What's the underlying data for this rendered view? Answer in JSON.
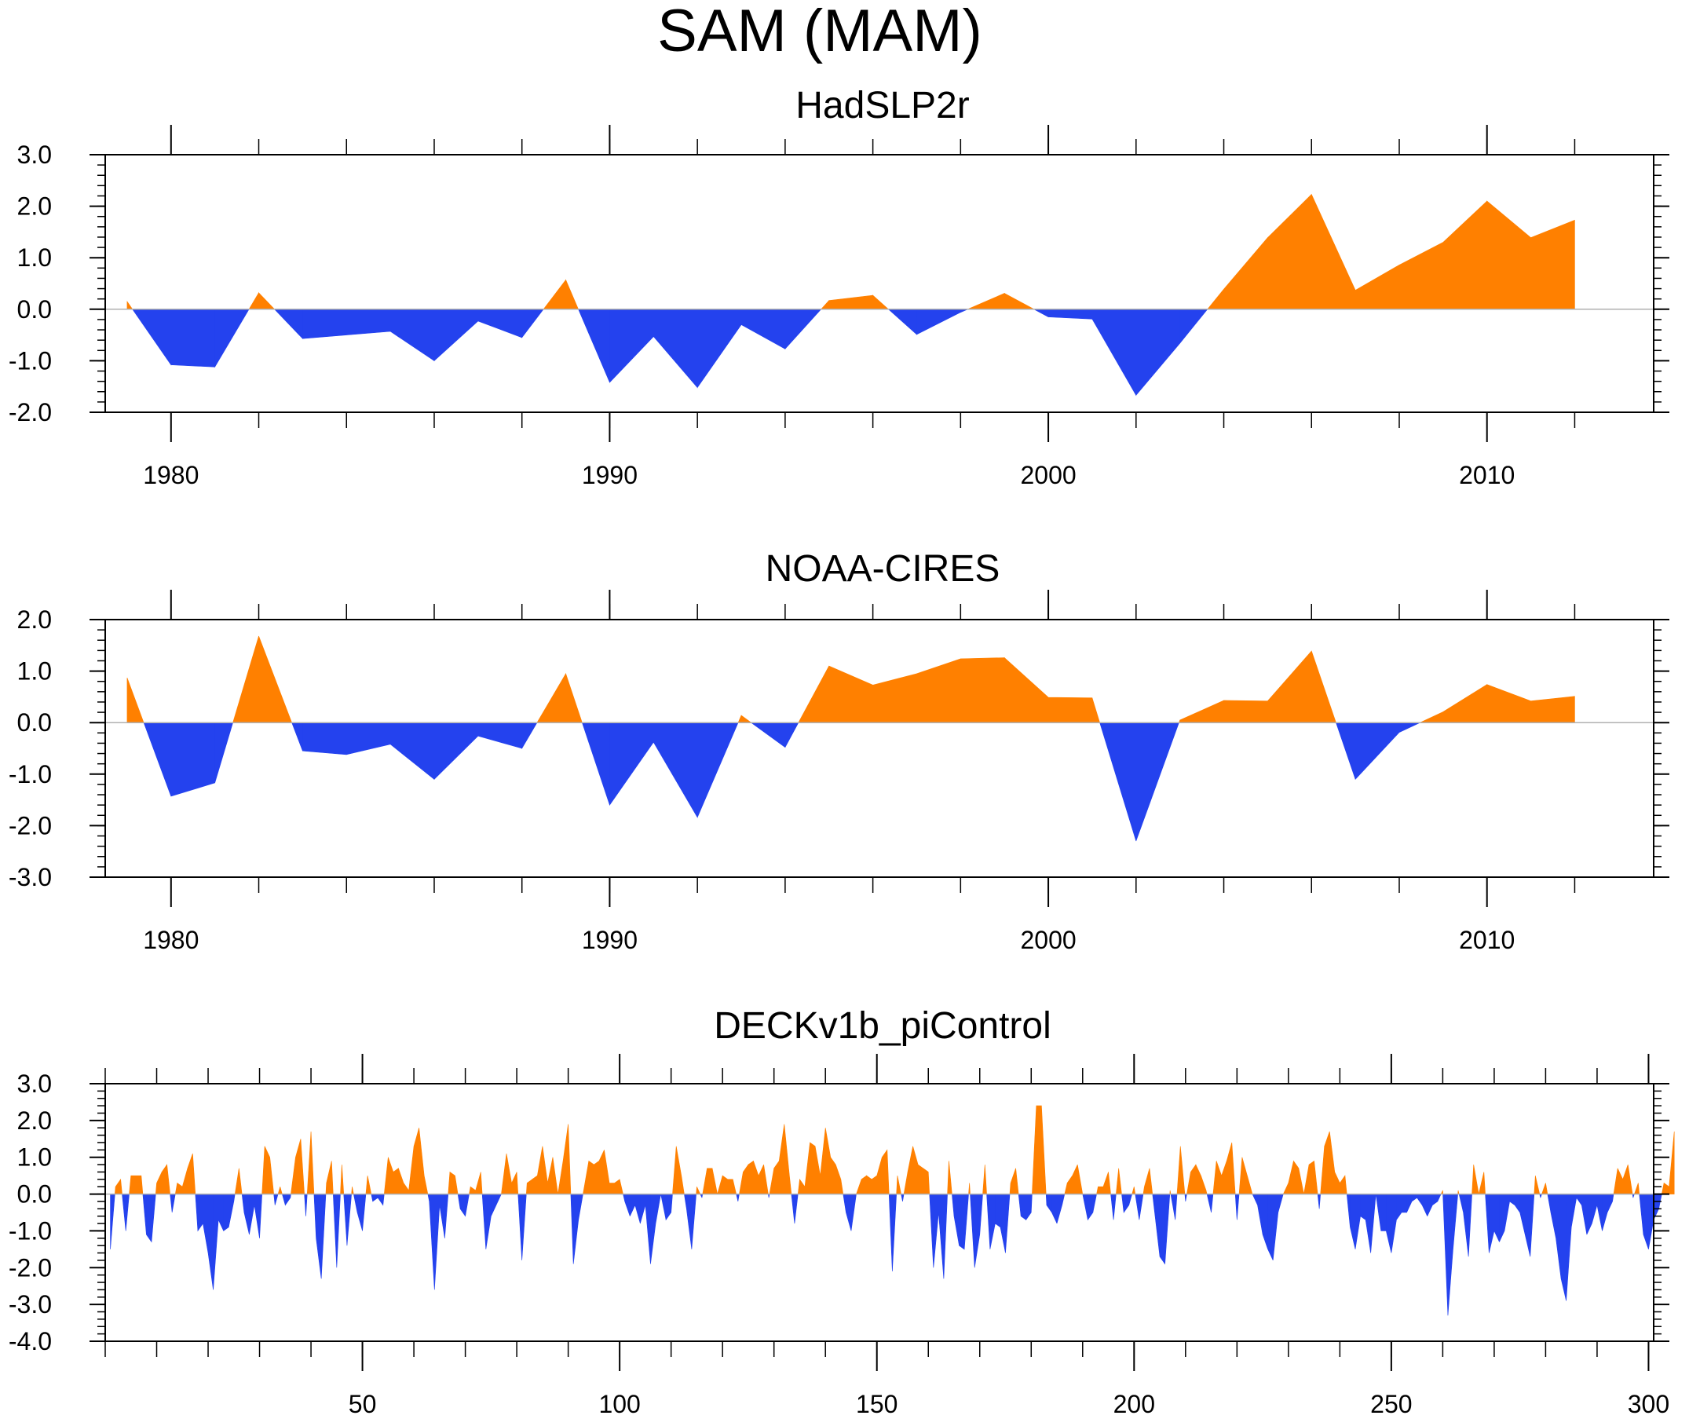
{
  "title": "SAM (MAM)",
  "colors": {
    "positive": "#ff8000",
    "negative": "#2442ee",
    "axis": "#000000",
    "zero_line": "#b0b0b0"
  },
  "chart_data": [
    {
      "type": "area",
      "title": "HadSLP2r",
      "xlabel": "",
      "ylabel": "",
      "xlim": [
        1978.5,
        2013.8
      ],
      "ylim": [
        -2.0,
        3.0
      ],
      "yticks": [
        -2.0,
        -1.0,
        0.0,
        1.0,
        2.0,
        3.0
      ],
      "ytick_labels": [
        "-2.0",
        "-1.0",
        "0.0",
        "1.0",
        "2.0",
        "3.0"
      ],
      "y_minor_step": 0.2,
      "xticks": [
        1980,
        1990,
        2000,
        2010
      ],
      "xtick_labels": [
        "1980",
        "1990",
        "2000",
        "2010"
      ],
      "x_minor_step": 2,
      "x": [
        1979,
        1980,
        1981,
        1982,
        1983,
        1984,
        1985,
        1986,
        1987,
        1988,
        1989,
        1990,
        1991,
        1992,
        1993,
        1994,
        1995,
        1996,
        1997,
        1998,
        1999,
        2000,
        2001,
        2002,
        2003,
        2004,
        2005,
        2006,
        2007,
        2008,
        2009,
        2010,
        2011,
        2012
      ],
      "values": [
        0.15,
        -1.08,
        -1.12,
        0.32,
        -0.57,
        -0.5,
        -0.43,
        -1.0,
        -0.23,
        -0.55,
        0.57,
        -1.42,
        -0.53,
        -1.52,
        -0.3,
        -0.77,
        0.17,
        0.27,
        -0.49,
        -0.06,
        0.31,
        -0.15,
        -0.19,
        -1.67,
        -0.66,
        0.39,
        1.39,
        2.23,
        0.37,
        0.86,
        1.3,
        2.1,
        1.39,
        1.73
      ]
    },
    {
      "type": "area",
      "title": "NOAA-CIRES",
      "xlabel": "",
      "ylabel": "",
      "xlim": [
        1978.5,
        2013.8
      ],
      "ylim": [
        -3.0,
        2.0
      ],
      "yticks": [
        -3.0,
        -2.0,
        -1.0,
        0.0,
        1.0,
        2.0
      ],
      "ytick_labels": [
        "-3.0",
        "-2.0",
        "-1.0",
        "0.0",
        "1.0",
        "2.0"
      ],
      "y_minor_step": 0.2,
      "xticks": [
        1980,
        1990,
        2000,
        2010
      ],
      "xtick_labels": [
        "1980",
        "1990",
        "2000",
        "2010"
      ],
      "x_minor_step": 2,
      "x": [
        1979,
        1980,
        1981,
        1982,
        1983,
        1984,
        1985,
        1986,
        1987,
        1988,
        1989,
        1990,
        1991,
        1992,
        1993,
        1994,
        1995,
        1996,
        1997,
        1998,
        1999,
        2000,
        2001,
        2002,
        2003,
        2004,
        2005,
        2006,
        2007,
        2008,
        2009,
        2010,
        2011,
        2012
      ],
      "values": [
        0.87,
        -1.43,
        -1.17,
        1.68,
        -0.55,
        -0.62,
        -0.42,
        -1.1,
        -0.26,
        -0.5,
        0.95,
        -1.6,
        -0.38,
        -1.84,
        0.14,
        -0.48,
        1.1,
        0.73,
        0.95,
        1.24,
        1.26,
        0.49,
        0.48,
        -2.3,
        0.05,
        0.43,
        0.42,
        1.39,
        -1.1,
        -0.19,
        0.21,
        0.74,
        0.42,
        0.51
      ]
    },
    {
      "type": "area",
      "title": "DECKv1b_piControl",
      "xlabel": "",
      "ylabel": "",
      "xlim": [
        0,
        301
      ],
      "ylim": [
        -4.0,
        3.0
      ],
      "yticks": [
        -4.0,
        -3.0,
        -2.0,
        -1.0,
        0.0,
        1.0,
        2.0,
        3.0
      ],
      "ytick_labels": [
        "-4.0",
        "-3.0",
        "-2.0",
        "-1.0",
        "0.0",
        "1.0",
        "2.0",
        "3.0"
      ],
      "y_minor_step": 0.2,
      "xticks": [
        50,
        100,
        150,
        200,
        250,
        300
      ],
      "xtick_labels": [
        "50",
        "100",
        "150",
        "200",
        "250",
        "300"
      ],
      "x_minor_step": 10,
      "x_start": 1,
      "values": [
        -1.5,
        0.2,
        0.4,
        -1.0,
        0.5,
        0.5,
        0.5,
        -1.1,
        -1.3,
        0.3,
        0.6,
        0.8,
        -0.5,
        0.3,
        0.2,
        0.7,
        1.1,
        -1.0,
        -0.8,
        -1.6,
        -2.6,
        -0.7,
        -1.0,
        -0.9,
        -0.2,
        0.7,
        -0.5,
        -1.1,
        -0.3,
        -1.2,
        1.3,
        1.0,
        -0.3,
        0.2,
        -0.3,
        -0.1,
        1.0,
        1.5,
        -0.6,
        1.7,
        -1.2,
        -2.3,
        0.3,
        0.9,
        -2.0,
        0.8,
        -1.4,
        0.2,
        -0.5,
        -1.0,
        0.5,
        -0.2,
        -0.1,
        -0.3,
        1.0,
        0.6,
        0.7,
        0.3,
        0.1,
        1.3,
        1.8,
        0.5,
        -0.2,
        -2.6,
        -0.3,
        -1.2,
        0.6,
        0.5,
        -0.4,
        -0.6,
        0.2,
        0.1,
        0.6,
        -1.5,
        -0.6,
        -0.3,
        0.0,
        1.1,
        0.3,
        0.6,
        -1.8,
        0.3,
        0.4,
        0.5,
        1.3,
        0.3,
        1.0,
        0.0,
        0.9,
        1.9,
        -1.9,
        -0.7,
        0.1,
        0.9,
        0.8,
        0.9,
        1.2,
        0.3,
        0.3,
        0.4,
        -0.2,
        -0.6,
        -0.3,
        -0.8,
        -0.3,
        -1.9,
        -0.8,
        0.0,
        -0.7,
        -0.5,
        1.3,
        0.5,
        -0.4,
        -1.5,
        0.2,
        -0.1,
        0.7,
        0.7,
        0.0,
        0.5,
        0.4,
        0.4,
        -0.2,
        0.6,
        0.8,
        0.9,
        0.5,
        0.8,
        -0.1,
        0.7,
        0.9,
        1.9,
        0.5,
        -0.8,
        0.4,
        0.2,
        1.4,
        1.3,
        0.5,
        1.8,
        1.0,
        0.8,
        0.4,
        -0.5,
        -1.0,
        0.0,
        0.4,
        0.5,
        0.4,
        0.5,
        1.0,
        1.2,
        -2.1,
        0.5,
        -0.2,
        0.6,
        1.3,
        0.8,
        0.7,
        0.6,
        -2.0,
        -0.5,
        -2.3,
        0.9,
        -0.6,
        -1.4,
        -1.5,
        0.3,
        -2.0,
        -1.1,
        0.8,
        -1.5,
        -0.8,
        -0.9,
        -1.6,
        0.3,
        0.7,
        -0.6,
        -0.7,
        -0.5,
        2.4,
        2.4,
        -0.3,
        -0.5,
        -0.8,
        -0.3,
        0.3,
        0.5,
        0.8,
        0.0,
        -0.7,
        -0.5,
        0.2,
        0.2,
        0.6,
        -0.7,
        0.7,
        -0.5,
        -0.3,
        0.2,
        -0.7,
        0.2,
        0.7,
        -0.5,
        -1.7,
        -1.9,
        0.1,
        -0.7,
        1.3,
        -0.2,
        0.6,
        0.8,
        0.5,
        0.1,
        -0.5,
        0.9,
        0.5,
        0.9,
        1.4,
        -0.7,
        1.0,
        0.5,
        0.0,
        -0.3,
        -1.1,
        -1.5,
        -1.8,
        -0.5,
        0.0,
        0.3,
        0.9,
        0.7,
        0.0,
        0.8,
        0.9,
        -0.4,
        1.3,
        1.7,
        0.6,
        0.3,
        0.5,
        -0.9,
        -1.5,
        -0.6,
        -0.7,
        -1.6,
        0.0,
        -1.0,
        -1.0,
        -1.6,
        -0.7,
        -0.5,
        -0.5,
        -0.2,
        -0.1,
        -0.3,
        -0.6,
        -0.3,
        -0.2,
        0.1,
        -3.3,
        -1.5,
        0.1,
        -0.5,
        -1.7,
        0.8,
        0.0,
        0.6,
        -1.6,
        -1.0,
        -1.3,
        -1.0,
        -0.2,
        -0.3,
        -0.5,
        -1.1,
        -1.7,
        0.5,
        -0.1,
        0.3,
        -0.5,
        -1.2,
        -2.3,
        -2.9,
        -0.9,
        -0.1,
        -0.3,
        -1.1,
        -0.8,
        -0.3,
        -1.0,
        -0.5,
        -0.2,
        0.7,
        0.4,
        0.8,
        -0.1,
        0.3,
        -1.1,
        -1.5,
        -0.7,
        -0.4,
        0.3,
        0.2,
        1.7
      ]
    }
  ]
}
